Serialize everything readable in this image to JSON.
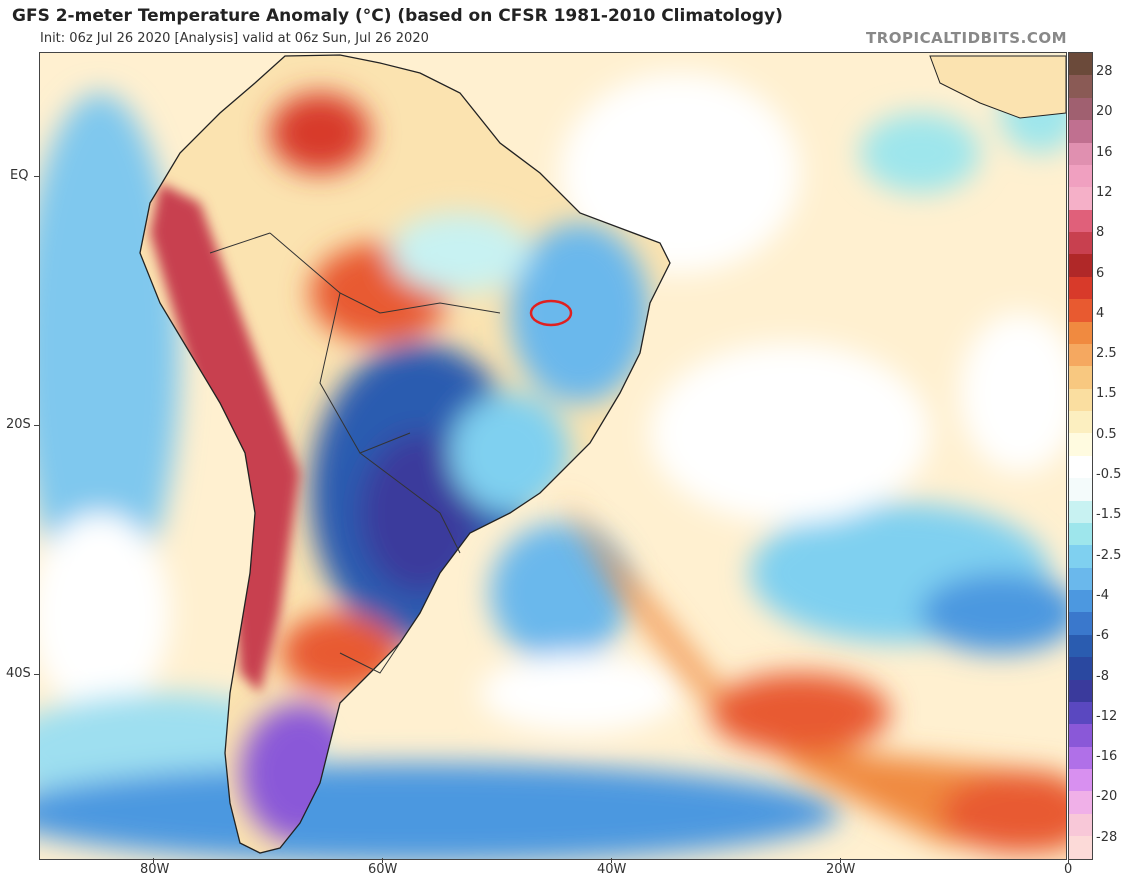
{
  "header": {
    "title": "GFS 2-meter Temperature Anomaly (°C) (based on CFSR 1981-2010 Climatology)",
    "subtitle": "Init: 06z Jul 26 2020   [Analysis]   valid at 06z Sun, Jul 26 2020",
    "brand": "TROPICALTIDBITS.COM"
  },
  "axes": {
    "lat_labels": [
      "EQ",
      "20S",
      "40S"
    ],
    "lon_labels": [
      "80W",
      "60W",
      "40W",
      "20W",
      "0"
    ]
  },
  "colorbar": {
    "labels": [
      "28",
      "20",
      "16",
      "12",
      "8",
      "6",
      "4",
      "2.5",
      "1.5",
      "0.5",
      "-0.5",
      "-1.5",
      "-2.5",
      "-4",
      "-6",
      "-8",
      "-12",
      "-16",
      "-20",
      "-28"
    ],
    "colors": [
      "#6b4a3a",
      "#8a5a55",
      "#a06070",
      "#c07090",
      "#e090b0",
      "#f0a0c0",
      "#f5b0c8",
      "#e0607a",
      "#c8404f",
      "#b02828",
      "#d83a2a",
      "#e85a30",
      "#f08a40",
      "#f5a860",
      "#f8c880",
      "#fadea0",
      "#fcefc0",
      "#fffbe0",
      "#ffffff",
      "#f4fbfb",
      "#c8f2f2",
      "#9ee6ec",
      "#7fd0f0",
      "#6ab8ec",
      "#4c98e0",
      "#3a78cc",
      "#2a5cb0",
      "#2a48a0",
      "#3a3a9c",
      "#5a48c0",
      "#8a58d8",
      "#b070e8",
      "#d890f0",
      "#f0b0e8",
      "#f8c8d8",
      "#fcdad8"
    ]
  },
  "map": {
    "annotation": "red-circle-highlight"
  }
}
